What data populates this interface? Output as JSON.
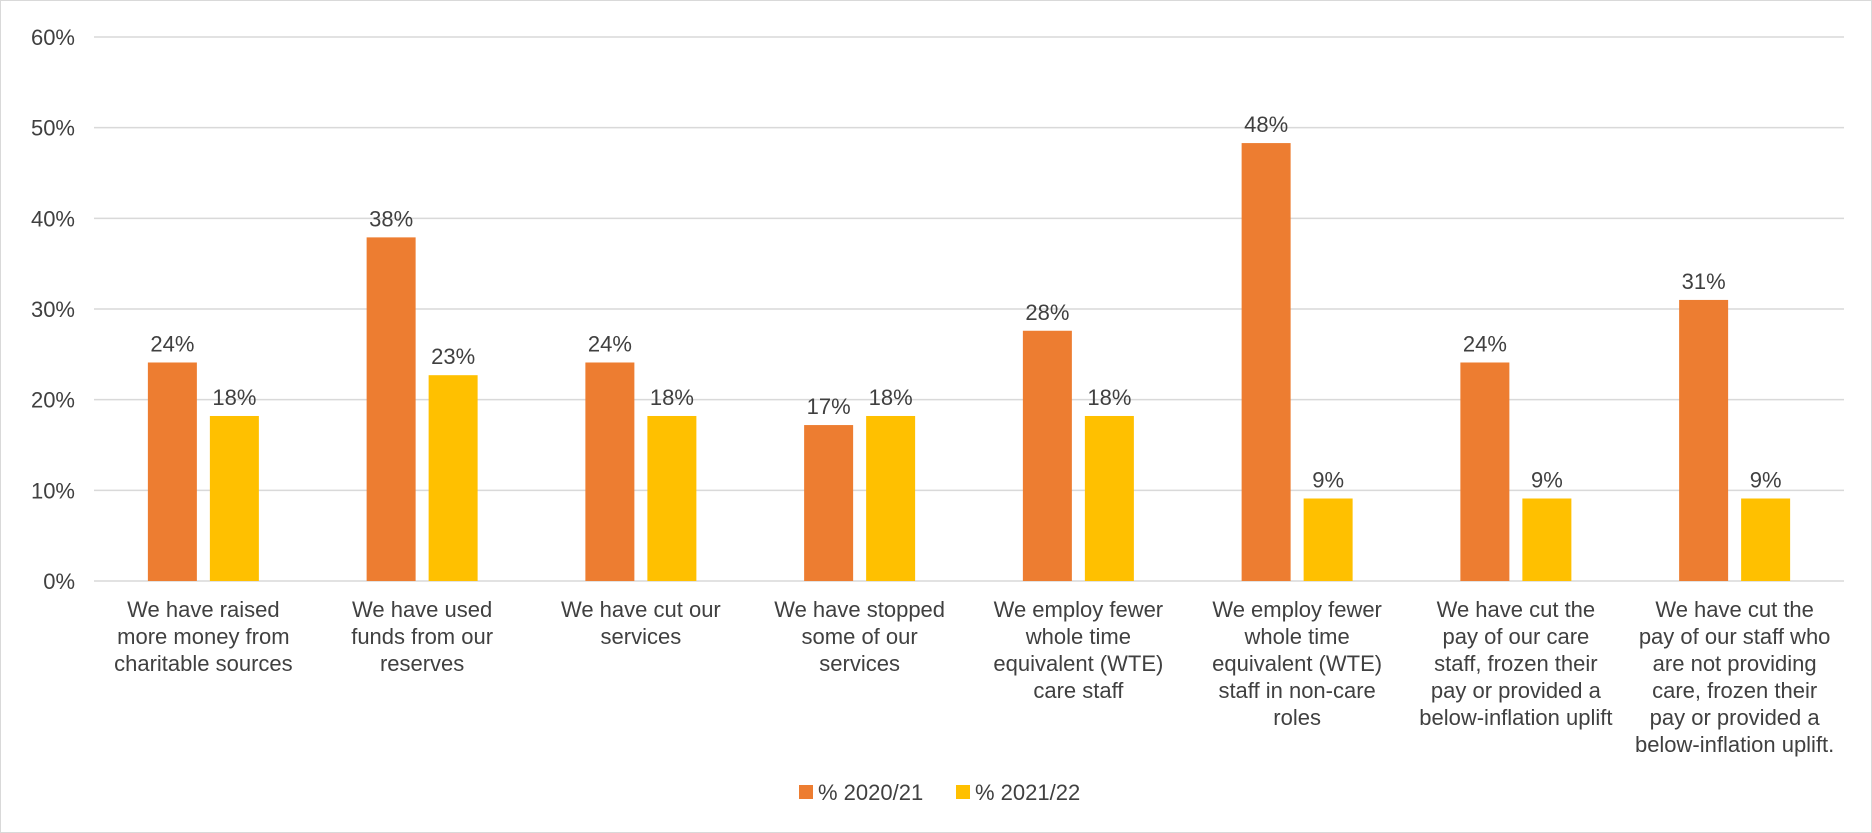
{
  "chart_data": {
    "type": "bar",
    "categories": [
      [
        "We have raised",
        "more money from",
        "charitable sources"
      ],
      [
        "We have used",
        "funds from our",
        "reserves"
      ],
      [
        "We have cut our",
        "services"
      ],
      [
        "We have stopped",
        "some of our",
        "services"
      ],
      [
        "We employ fewer",
        "whole time",
        "equivalent (WTE)",
        "care staff"
      ],
      [
        "We employ fewer",
        "whole time",
        "equivalent (WTE)",
        "staff in non-care",
        "roles"
      ],
      [
        "We have cut the",
        "pay of our care",
        "staff, frozen their",
        "pay or provided a",
        "below-inflation uplift"
      ],
      [
        "We have cut the",
        "pay of our staff who",
        "are not providing",
        "care, frozen their",
        "pay or provided a",
        "below-inflation uplift."
      ]
    ],
    "series": [
      {
        "name": "% 2020/21",
        "color": "#ED7D31",
        "values": [
          24.1,
          37.9,
          24.1,
          17.2,
          27.6,
          48.3,
          24.1,
          31.0
        ],
        "labels": [
          "24%",
          "38%",
          "24%",
          "17%",
          "28%",
          "48%",
          "24%",
          "31%"
        ]
      },
      {
        "name": "% 2021/22",
        "color": "#FFC000",
        "values": [
          18.2,
          22.7,
          18.2,
          18.2,
          18.2,
          9.1,
          9.1,
          9.1
        ],
        "labels": [
          "18%",
          "23%",
          "18%",
          "18%",
          "18%",
          "9%",
          "9%",
          "9%"
        ]
      }
    ],
    "ylim": [
      0,
      60
    ],
    "yticks": [
      0,
      10,
      20,
      30,
      40,
      50,
      60
    ],
    "ytick_labels": [
      "0%",
      "10%",
      "20%",
      "30%",
      "40%",
      "50%",
      "60%"
    ],
    "grid": true,
    "legend_position": "bottom-center",
    "gridline_color": "#d9d9d9"
  }
}
